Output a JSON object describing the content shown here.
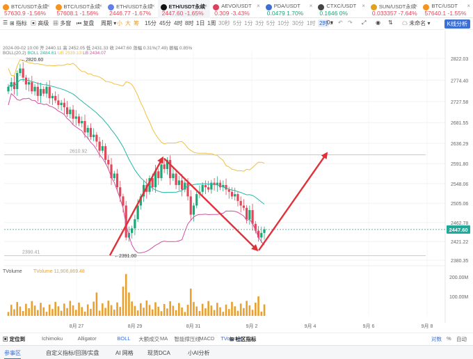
{
  "tickers": [
    {
      "name": "BTC/USDT永续",
      "price": "57630.9",
      "change": "-1.56%",
      "up": false
    },
    {
      "name": "BTC/USDT永续",
      "price": "57608.1",
      "change": "-1.56%",
      "up": false
    },
    {
      "name": "ETH/USDT永续",
      "price": "2446.77",
      "change": "-1.67%",
      "up": false
    },
    {
      "name": "ETH/USDT永续",
      "price": "2447.60",
      "change": "-1.65%",
      "up": false
    },
    {
      "name": "AEVO/USDT",
      "price": "0.309",
      "change": "-3.43%",
      "up": false
    },
    {
      "name": "PDA/USDT",
      "price": "0.0479",
      "change": "1.70%",
      "up": true
    },
    {
      "name": "CTXC/USDT",
      "price": "0.1646",
      "change": "0%",
      "up": true
    },
    {
      "name": "SUN/USDT永续",
      "price": "0.033357",
      "change": "-7.64%",
      "up": false
    },
    {
      "name": "BTC/USDT",
      "price": "57640.1",
      "change": "-1.55%",
      "up": false
    }
  ],
  "toolbar": {
    "indicators": "指标",
    "advanced": "高级",
    "multi_space": "多窗",
    "replay": "复盘",
    "cycle": "周期",
    "sizes": [
      "小",
      "大",
      "筹"
    ],
    "intervals": [
      "15分",
      "45分",
      "4时",
      "8时",
      "1日",
      "1周",
      "30秒",
      "5分",
      "1分",
      "3分",
      "5分",
      "10分",
      "30分",
      "1时",
      "2时"
    ],
    "selected_interval": "2时",
    "countdown": "0s",
    "save_state": "未命名",
    "kline_analysis": "K线分析"
  },
  "info": {
    "line1": "2024-09-02 10:00  开 2440.11  高 2452.05  低 2431.33  收 2447.60  涨幅 0.31%(7.49)  振幅 0.85%",
    "boll_label": "BOLL(20,2)",
    "boll_mid": "BOLL 2484.61",
    "boll_ub": "UB 2535.13",
    "boll_lb": "LB 2434.07"
  },
  "chart_data": {
    "type": "candlestick",
    "symbol": "ETH/USDT永续",
    "interval": "2时",
    "y_ticks": [
      "2822.03",
      "2774.40",
      "2727.58",
      "2681.55",
      "2636.29",
      "2591.80",
      "2548.06",
      "2505.06",
      "2462.78",
      "2421.22",
      "2380.35"
    ],
    "x_ticks": [
      "8月 27",
      "8月 29",
      "8月 31",
      "9月 2",
      "9月 4",
      "9月 6",
      "9月 8"
    ],
    "current_price": "2447.60",
    "high_label": "2820.60",
    "low_label": "2391.00",
    "level_lines": [
      {
        "label": "2610.92",
        "price": 2610.92
      },
      {
        "label": "2390.41",
        "price": 2390.41
      }
    ],
    "volume_label": "TVolume",
    "volume_value": "TVolume 11,906,869.48",
    "volume_ticks": [
      "200.00M",
      "100.00M"
    ],
    "closes": [
      2760,
      2770,
      2755,
      2790,
      2800,
      2780,
      2765,
      2770,
      2750,
      2760,
      2740,
      2755,
      2745,
      2760,
      2735,
      2740,
      2730,
      2720,
      2725,
      2715,
      2700,
      2710,
      2690,
      2695,
      2680,
      2685,
      2660,
      2670,
      2650,
      2655,
      2640,
      2620,
      2630,
      2600,
      2590,
      2560,
      2570,
      2540,
      2520,
      2500,
      2430,
      2440,
      2450,
      2470,
      2500,
      2520,
      2545,
      2530,
      2560,
      2540,
      2575,
      2560,
      2590,
      2580,
      2600,
      2560,
      2570,
      2545,
      2555,
      2535,
      2550,
      2520,
      2480,
      2500,
      2525,
      2530,
      2545,
      2540,
      2535,
      2550,
      2545,
      2550,
      2540,
      2545,
      2535,
      2530,
      2520,
      2525,
      2510,
      2500,
      2495,
      2470,
      2490,
      2460,
      2445,
      2430,
      2440,
      2448
    ],
    "annotations": [
      {
        "type": "arrow-up",
        "from": "2391.00 (8月 29)",
        "to": "2600 (8月 30)"
      },
      {
        "type": "arrow-down",
        "from": "2600 (8月 30)",
        "to": "2400 (9月 2)"
      },
      {
        "type": "arrow-up",
        "from": "2400 (9月 2)",
        "to": "2615 (9月 4)"
      }
    ]
  },
  "indicator_bar": {
    "locate": "定位到",
    "items": [
      "Ichimoku",
      "Alligator",
      "BOLL",
      "大额成交",
      "MA",
      "智能撑压线",
      "MACD",
      "TVolume"
    ],
    "active": [
      "BOLL",
      "TVolume"
    ],
    "community": "社区指标",
    "right": [
      "对数",
      "%",
      "自动"
    ]
  },
  "footer": {
    "tabs": [
      "参事区",
      "自定义指标/回测/实盘",
      "AI 网格",
      "现货DCA",
      "小AI分析"
    ],
    "active_tab": "参事区"
  }
}
